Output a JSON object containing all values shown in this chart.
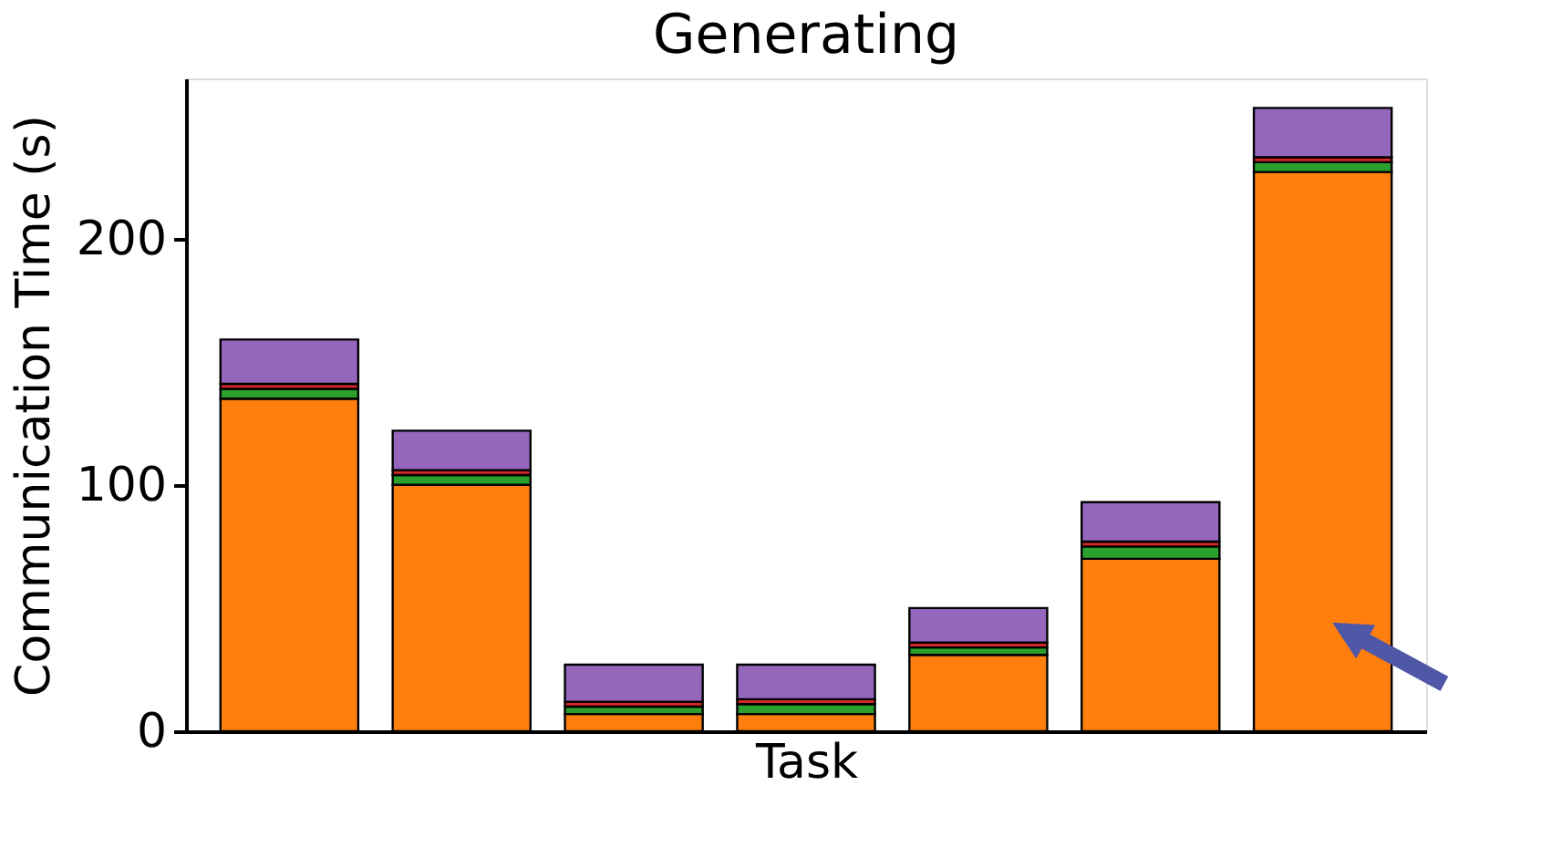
{
  "chart_data": {
    "type": "bar",
    "title": "Generating",
    "xlabel": "Task",
    "ylabel": "Communication Time (s)",
    "categories": [
      null,
      null,
      null,
      null,
      null,
      null,
      null
    ],
    "stacked": true,
    "series": [
      {
        "color": "#ff7f0e",
        "values": [
          135,
          100,
          7,
          7,
          31,
          70,
          227
        ]
      },
      {
        "color": "#2ca02c",
        "values": [
          4,
          4,
          3,
          4,
          3,
          5,
          4
        ]
      },
      {
        "color": "#d62728",
        "values": [
          2,
          2,
          2,
          2,
          2,
          2,
          2
        ]
      },
      {
        "color": "#9467bd",
        "values": [
          18,
          16,
          15,
          14,
          14,
          16,
          20
        ]
      }
    ],
    "ylim": [
      0,
      265
    ],
    "yticks": [
      0,
      100,
      200
    ],
    "grid": false,
    "legend": false,
    "tick_labels": "y"
  }
}
